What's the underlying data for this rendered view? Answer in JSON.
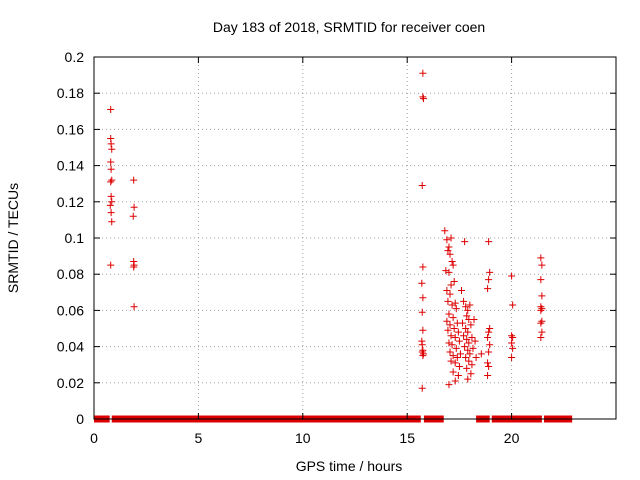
{
  "chart_data": {
    "type": "scatter",
    "title": "Day 183 of 2018, SRMTID for receiver coen",
    "xlabel": "GPS time / hours",
    "ylabel": "SRMTID / TECUs",
    "xlim": [
      0,
      25
    ],
    "ylim": [
      0,
      0.2
    ],
    "xticks": [
      0,
      5,
      10,
      15,
      20
    ],
    "yticks": [
      0,
      0.02,
      0.04,
      0.06,
      0.08,
      0.1,
      0.12,
      0.14,
      0.16,
      0.18,
      0.2
    ],
    "ytick_labels": [
      "0",
      "0.02",
      "0.04",
      "0.06",
      "0.08",
      "0.1",
      "0.12",
      "0.14",
      "0.16",
      "0.18",
      "0.2"
    ],
    "grid": true,
    "marker": "plus",
    "color": "#dd0000",
    "zero_line_segments": [
      [
        0,
        0.75
      ],
      [
        0.85,
        15.65
      ],
      [
        15.8,
        16.75
      ],
      [
        18.3,
        18.95
      ],
      [
        19.05,
        21.45
      ],
      [
        21.55,
        22.9
      ]
    ],
    "series": [
      {
        "name": "SRMTID",
        "points": [
          [
            0.8,
            0.171
          ],
          [
            0.8,
            0.155
          ],
          [
            0.82,
            0.152
          ],
          [
            0.85,
            0.149
          ],
          [
            0.8,
            0.142
          ],
          [
            0.82,
            0.138
          ],
          [
            0.85,
            0.132
          ],
          [
            0.8,
            0.131
          ],
          [
            0.82,
            0.123
          ],
          [
            0.85,
            0.12
          ],
          [
            0.78,
            0.118
          ],
          [
            0.82,
            0.114
          ],
          [
            0.85,
            0.109
          ],
          [
            0.8,
            0.085
          ],
          [
            1.9,
            0.132
          ],
          [
            1.92,
            0.117
          ],
          [
            1.88,
            0.112
          ],
          [
            1.9,
            0.087
          ],
          [
            1.92,
            0.085
          ],
          [
            1.9,
            0.084
          ],
          [
            1.92,
            0.062
          ],
          [
            15.75,
            0.191
          ],
          [
            15.75,
            0.178
          ],
          [
            15.78,
            0.177
          ],
          [
            15.72,
            0.129
          ],
          [
            15.75,
            0.084
          ],
          [
            15.7,
            0.075
          ],
          [
            15.75,
            0.067
          ],
          [
            15.72,
            0.059
          ],
          [
            15.75,
            0.049
          ],
          [
            15.7,
            0.043
          ],
          [
            15.72,
            0.041
          ],
          [
            15.75,
            0.038
          ],
          [
            15.72,
            0.037
          ],
          [
            15.78,
            0.036
          ],
          [
            15.75,
            0.035
          ],
          [
            15.72,
            0.017
          ],
          [
            16.8,
            0.104
          ],
          [
            16.9,
            0.099
          ],
          [
            16.95,
            0.093
          ],
          [
            17.0,
            0.095
          ],
          [
            17.05,
            0.091
          ],
          [
            17.1,
            0.1
          ],
          [
            17.15,
            0.087
          ],
          [
            16.85,
            0.082
          ],
          [
            17.0,
            0.081
          ],
          [
            17.2,
            0.085
          ],
          [
            17.25,
            0.076
          ],
          [
            16.9,
            0.071
          ],
          [
            17.05,
            0.069
          ],
          [
            17.1,
            0.074
          ],
          [
            16.95,
            0.065
          ],
          [
            17.15,
            0.063
          ],
          [
            17.3,
            0.064
          ],
          [
            17.0,
            0.058
          ],
          [
            17.2,
            0.056
          ],
          [
            17.35,
            0.061
          ],
          [
            16.9,
            0.054
          ],
          [
            17.05,
            0.052
          ],
          [
            17.25,
            0.05
          ],
          [
            17.4,
            0.053
          ],
          [
            16.95,
            0.049
          ],
          [
            17.1,
            0.046
          ],
          [
            17.3,
            0.045
          ],
          [
            17.45,
            0.048
          ],
          [
            17.0,
            0.042
          ],
          [
            17.15,
            0.041
          ],
          [
            17.35,
            0.039
          ],
          [
            17.5,
            0.043
          ],
          [
            17.05,
            0.037
          ],
          [
            17.2,
            0.035
          ],
          [
            17.4,
            0.034
          ],
          [
            17.55,
            0.036
          ],
          [
            17.1,
            0.032
          ],
          [
            17.3,
            0.031
          ],
          [
            17.5,
            0.029
          ],
          [
            17.2,
            0.026
          ],
          [
            17.45,
            0.024
          ],
          [
            17.3,
            0.021
          ],
          [
            17.0,
            0.019
          ],
          [
            17.6,
            0.071
          ],
          [
            17.7,
            0.065
          ],
          [
            17.8,
            0.062
          ],
          [
            17.9,
            0.06
          ],
          [
            17.75,
            0.098
          ],
          [
            17.85,
            0.057
          ],
          [
            17.95,
            0.055
          ],
          [
            18.0,
            0.063
          ],
          [
            17.65,
            0.053
          ],
          [
            17.8,
            0.05
          ],
          [
            17.9,
            0.048
          ],
          [
            18.05,
            0.052
          ],
          [
            17.7,
            0.046
          ],
          [
            17.85,
            0.044
          ],
          [
            17.95,
            0.042
          ],
          [
            18.1,
            0.045
          ],
          [
            17.75,
            0.04
          ],
          [
            17.9,
            0.038
          ],
          [
            18.0,
            0.036
          ],
          [
            18.15,
            0.039
          ],
          [
            17.8,
            0.034
          ],
          [
            17.95,
            0.032
          ],
          [
            18.1,
            0.03
          ],
          [
            17.85,
            0.028
          ],
          [
            18.05,
            0.025
          ],
          [
            17.9,
            0.022
          ],
          [
            18.2,
            0.055
          ],
          [
            18.25,
            0.043
          ],
          [
            18.3,
            0.034
          ],
          [
            18.55,
            0.036
          ],
          [
            18.9,
            0.098
          ],
          [
            18.95,
            0.081
          ],
          [
            18.9,
            0.077
          ],
          [
            18.85,
            0.072
          ],
          [
            18.95,
            0.05
          ],
          [
            18.9,
            0.048
          ],
          [
            18.85,
            0.045
          ],
          [
            18.95,
            0.041
          ],
          [
            18.9,
            0.037
          ],
          [
            18.85,
            0.031
          ],
          [
            18.9,
            0.029
          ],
          [
            18.85,
            0.024
          ],
          [
            20.0,
            0.079
          ],
          [
            20.05,
            0.063
          ],
          [
            20.0,
            0.046
          ],
          [
            20.05,
            0.045
          ],
          [
            20.0,
            0.042
          ],
          [
            20.05,
            0.039
          ],
          [
            20.0,
            0.034
          ],
          [
            21.4,
            0.089
          ],
          [
            21.45,
            0.085
          ],
          [
            21.4,
            0.077
          ],
          [
            21.45,
            0.068
          ],
          [
            21.4,
            0.062
          ],
          [
            21.45,
            0.061
          ],
          [
            21.4,
            0.06
          ],
          [
            21.45,
            0.054
          ],
          [
            21.4,
            0.053
          ],
          [
            21.45,
            0.048
          ],
          [
            21.4,
            0.045
          ]
        ]
      }
    ]
  }
}
